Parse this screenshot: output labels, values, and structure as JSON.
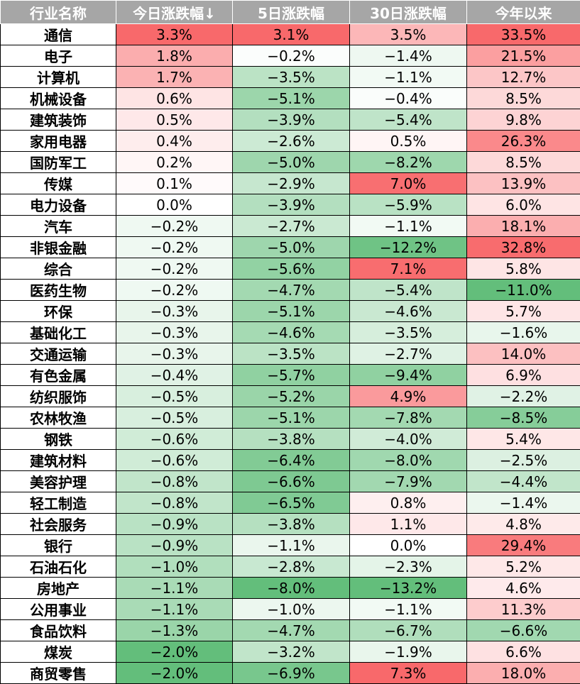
{
  "chart_data": {
    "type": "table",
    "columns": [
      "行业名称",
      "今日涨跌幅↓",
      "5日涨跌幅",
      "30日涨跌幅",
      "今年以来"
    ],
    "colors": {
      "positive": "#f8696b",
      "negative": "#63be7b",
      "neutral": "#ffffff"
    },
    "rows": [
      [
        "通信",
        "3.3%",
        "3.1%",
        "3.5%",
        "33.5%"
      ],
      [
        "电子",
        "1.8%",
        "−0.2%",
        "−1.4%",
        "21.5%"
      ],
      [
        "计算机",
        "1.7%",
        "−3.5%",
        "−1.1%",
        "12.7%"
      ],
      [
        "机械设备",
        "0.6%",
        "−5.1%",
        "−0.4%",
        "8.5%"
      ],
      [
        "建筑装饰",
        "0.5%",
        "−3.9%",
        "−5.4%",
        "9.8%"
      ],
      [
        "家用电器",
        "0.4%",
        "−2.6%",
        "0.5%",
        "26.3%"
      ],
      [
        "国防军工",
        "0.2%",
        "−5.0%",
        "−8.2%",
        "8.5%"
      ],
      [
        "传媒",
        "0.1%",
        "−2.9%",
        "7.0%",
        "13.9%"
      ],
      [
        "电力设备",
        "0.0%",
        "−3.9%",
        "−5.9%",
        "6.0%"
      ],
      [
        "汽车",
        "−0.2%",
        "−2.7%",
        "−1.1%",
        "18.1%"
      ],
      [
        "非银金融",
        "−0.2%",
        "−5.0%",
        "−12.2%",
        "32.8%"
      ],
      [
        "综合",
        "−0.2%",
        "−5.6%",
        "7.1%",
        "5.8%"
      ],
      [
        "医药生物",
        "−0.2%",
        "−4.7%",
        "−5.4%",
        "−11.0%"
      ],
      [
        "环保",
        "−0.3%",
        "−5.1%",
        "−4.6%",
        "5.7%"
      ],
      [
        "基础化工",
        "−0.3%",
        "−4.6%",
        "−3.5%",
        "−1.6%"
      ],
      [
        "交通运输",
        "−0.3%",
        "−3.5%",
        "−2.7%",
        "14.0%"
      ],
      [
        "有色金属",
        "−0.4%",
        "−5.7%",
        "−9.4%",
        "6.9%"
      ],
      [
        "纺织服饰",
        "−0.5%",
        "−5.2%",
        "4.9%",
        "−2.2%"
      ],
      [
        "农林牧渔",
        "−0.5%",
        "−5.1%",
        "−7.8%",
        "−8.5%"
      ],
      [
        "钢铁",
        "−0.6%",
        "−3.8%",
        "−4.0%",
        "5.4%"
      ],
      [
        "建筑材料",
        "−0.6%",
        "−6.4%",
        "−8.0%",
        "−2.5%"
      ],
      [
        "美容护理",
        "−0.8%",
        "−6.6%",
        "−7.9%",
        "−4.4%"
      ],
      [
        "轻工制造",
        "−0.8%",
        "−6.5%",
        "0.8%",
        "−1.4%"
      ],
      [
        "社会服务",
        "−0.9%",
        "−3.8%",
        "1.1%",
        "4.8%"
      ],
      [
        "银行",
        "−0.9%",
        "−1.1%",
        "0.0%",
        "29.4%"
      ],
      [
        "石油石化",
        "−1.0%",
        "−2.8%",
        "−2.3%",
        "5.2%"
      ],
      [
        "房地产",
        "−1.1%",
        "−8.0%",
        "−13.2%",
        "4.6%"
      ],
      [
        "公用事业",
        "−1.1%",
        "−1.0%",
        "−1.1%",
        "11.3%"
      ],
      [
        "食品饮料",
        "−1.3%",
        "−4.7%",
        "−6.7%",
        "−6.6%"
      ],
      [
        "煤炭",
        "−2.0%",
        "−3.2%",
        "−1.9%",
        "6.6%"
      ],
      [
        "商贸零售",
        "−2.0%",
        "−6.9%",
        "7.3%",
        "18.0%"
      ]
    ]
  }
}
